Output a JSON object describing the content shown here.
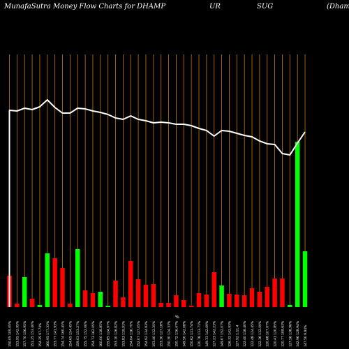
{
  "header": {
    "left": "MunafaSutra  Money Flow  Charts for DHAMP",
    "mid1": "UR",
    "mid2": "SUG",
    "right": "(Dhampu"
  },
  "chart_data": {
    "type": "bar",
    "title": "MunafaSutra  Money Flow  Charts for DHAMPUR SUG",
    "colors": {
      "up": "#00ff00",
      "down": "#ff0000",
      "line": "#ffffff",
      "grid": "#c87a00",
      "background": "#000000"
    },
    "categories": [
      "150.05 109.05%",
      "153.95 142.95%",
      "157.70 156.95%",
      "151.25 153.40%",
      "154.35 97.74%",
      "160.95 177.33%",
      "153.77 141.93%",
      "154.74 160.45%",
      "154.65 154.45%",
      "159.03 153.27%",
      "155.75 152.00%",
      "154.73 162.05%",
      "160.00 118.85%",
      "155.85 124.97%",
      "153.10 126.82%",
      "153.83 119.91%",
      "154.04 116.70%",
      "152.07 127.05%",
      "154.92 134.93%",
      "153.40 132.35%",
      "153.30 127.18%",
      "150.30 124.33%",
      "150.72 116.47%",
      "149.50 142.08%",
      "150.62 111.74%",
      "120.78 113.71%",
      "149.33 142.09%",
      "127.23 142.23%",
      "149.07 152.07%",
      "126.32 142.93%",
      "127.92 1.11.4",
      "122.40 118.40%",
      "122.48 124.45%",
      "122.36 132.09%",
      "120.68 107.07%",
      "120.41 120.85%",
      "120.77 108.63%",
      "127.56 138.96%",
      "142.96 128.94%",
      "147.50 9.84%"
    ],
    "volume": [
      45,
      5,
      43,
      12,
      3,
      77,
      70,
      56,
      5,
      83,
      24,
      20,
      22,
      2,
      38,
      14,
      66,
      40,
      32,
      33,
      6,
      6,
      17,
      10,
      2,
      20,
      18,
      50,
      31,
      19,
      18,
      17,
      27,
      22,
      29,
      41,
      41,
      3,
      237,
      80
    ],
    "direction": [
      "down",
      "down",
      "up",
      "down",
      "up",
      "up",
      "down",
      "down",
      "down",
      "up",
      "down",
      "down",
      "up",
      "up",
      "down",
      "down",
      "down",
      "down",
      "down",
      "down",
      "down",
      "down",
      "down",
      "down",
      "down",
      "down",
      "down",
      "down",
      "up",
      "down",
      "down",
      "down",
      "down",
      "down",
      "down",
      "down",
      "down",
      "up",
      "up",
      "up"
    ],
    "price_line": [
      158,
      159,
      155,
      157,
      153,
      143,
      154,
      162,
      162,
      155,
      156,
      159,
      161,
      164,
      169,
      171,
      166,
      171,
      173,
      176,
      175,
      176,
      178,
      178,
      180,
      184,
      187,
      195,
      187,
      188,
      191,
      194,
      196,
      202,
      206,
      207,
      220,
      222,
      205,
      189
    ],
    "x_axis_marker": "%"
  }
}
